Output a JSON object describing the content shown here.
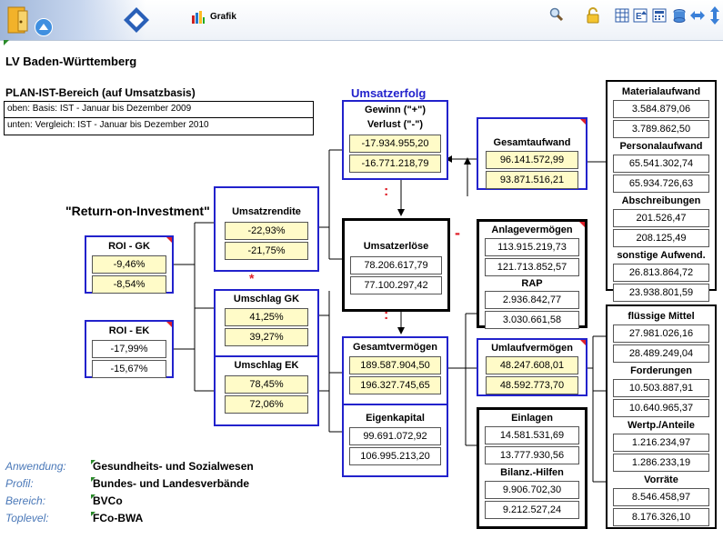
{
  "toolbar": {
    "grafik_label": "Grafik",
    "colors": {
      "accent": "#2222cc",
      "highlight": "#fffbc8",
      "alert": "#e0202a"
    }
  },
  "page_title": "LV Baden-Württemberg",
  "plan": {
    "heading": "PLAN-IST-Bereich (auf Umsatzbasis)",
    "line1": "oben: Basis: IST - Januar bis Dezember 2009",
    "line2": "unten: Vergleich: IST - Januar bis Dezember 2010"
  },
  "roi_title": "\"Return-on-Investment\"",
  "umsatzerfolg_title": "Umsatzerfolg",
  "boxes": {
    "roi_gk": {
      "label": "ROI - GK",
      "v1": "-9,46%",
      "v2": "-8,54%"
    },
    "roi_ek": {
      "label": "ROI - EK",
      "v1": "-17,99%",
      "v2": "-15,67%"
    },
    "umsatzrendite": {
      "label": "Umsatzrendite",
      "v1": "-22,93%",
      "v2": "-21,75%"
    },
    "umschlag_gk": {
      "label": "Umschlag GK",
      "v1": "41,25%",
      "v2": "39,27%"
    },
    "umschlag_ek": {
      "label": "Umschlag EK",
      "v1": "78,45%",
      "v2": "72,06%"
    },
    "gewinn": {
      "label1": "Gewinn (\"+\")",
      "label2": "Verlust (\"-\")",
      "v1": "-17.934.955,20",
      "v2": "-16.771.218,79"
    },
    "umsatzerloese": {
      "label": "Umsatzerlöse",
      "v1": "78.206.617,79",
      "v2": "77.100.297,42"
    },
    "gesamtvermoegen": {
      "label": "Gesamtvermögen",
      "v1": "189.587.904,50",
      "v2": "196.327.745,65"
    },
    "eigenkapital": {
      "label": "Eigenkapital",
      "v1": "99.691.072,92",
      "v2": "106.995.213,20"
    },
    "gesamtaufwand": {
      "label": "Gesamtaufwand",
      "v1": "96.141.572,99",
      "v2": "93.871.516,21"
    },
    "anlagevermoegen": {
      "label": "Anlagevermögen",
      "v1": "113.915.219,73",
      "v2": "121.713.852,57"
    },
    "rap": {
      "label": "RAP",
      "v1": "2.936.842,77",
      "v2": "3.030.661,58"
    },
    "umlaufvermoegen": {
      "label": "Umlaufvermögen",
      "v1": "48.247.608,01",
      "v2": "48.592.773,70"
    },
    "einlagen": {
      "label": "Einlagen",
      "v1": "14.581.531,69",
      "v2": "13.777.930,56"
    },
    "bilanzhilfen": {
      "label": "Bilanz.-Hilfen",
      "v1": "9.906.702,30",
      "v2": "9.212.527,24"
    },
    "material": {
      "label": "Materialaufwand",
      "v1": "3.584.879,06",
      "v2": "3.789.862,50"
    },
    "personal": {
      "label": "Personalaufwand",
      "v1": "65.541.302,74",
      "v2": "65.934.726,63"
    },
    "abschreibungen": {
      "label": "Abschreibungen",
      "v1": "201.526,47",
      "v2": "208.125,49"
    },
    "sonstige": {
      "label": "sonstige Aufwend.",
      "v1": "26.813.864,72",
      "v2": "23.938.801,59"
    },
    "fluessige": {
      "label": "flüssige Mittel",
      "v1": "27.981.026,16",
      "v2": "28.489.249,04"
    },
    "forderungen": {
      "label": "Forderungen",
      "v1": "10.503.887,91",
      "v2": "10.640.965,37"
    },
    "wertp": {
      "label": "Wertp./Anteile",
      "v1": "1.216.234,97",
      "v2": "1.286.233,19"
    },
    "vorraete": {
      "label": "Vorräte",
      "v1": "8.546.458,97",
      "v2": "8.176.326,10"
    }
  },
  "operators": {
    "colon": ":",
    "minus": "-",
    "star": "*"
  },
  "footer": {
    "anwendung_label": "Anwendung:",
    "anwendung_value": "Gesundheits- und Sozialwesen",
    "profil_label": "Profil:",
    "profil_value": "Bundes- und Landesverbände",
    "bereich_label": "Bereich:",
    "bereich_value": "BVCo",
    "toplevel_label": "Toplevel:",
    "toplevel_value": "FCo-BWA"
  }
}
